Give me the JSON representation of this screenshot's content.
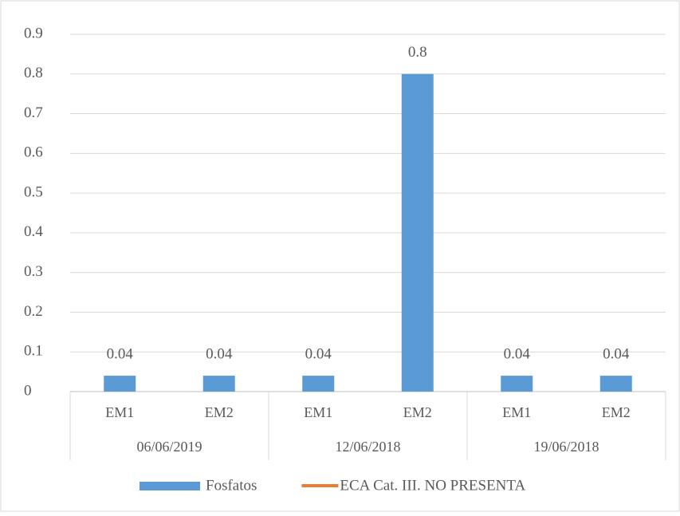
{
  "chart_data": {
    "type": "bar",
    "categories": [
      "EM1",
      "EM2",
      "EM1",
      "EM2",
      "EM1",
      "EM2"
    ],
    "groups": [
      "06/06/2019",
      "12/06/2018",
      "19/06/2018"
    ],
    "series": [
      {
        "name": "Fosfatos",
        "color": "#5b9bd5",
        "values": [
          0.04,
          0.04,
          0.04,
          0.8,
          0.04,
          0.04
        ]
      },
      {
        "name": "ECA Cat. III. NO PRESENTA",
        "color": "#ed7d31",
        "type": "line",
        "values": [
          null,
          null,
          null,
          null,
          null,
          null
        ]
      }
    ],
    "ylim": [
      0,
      0.9
    ],
    "yticks": [
      0,
      0.1,
      0.2,
      0.3,
      0.4,
      0.5,
      0.6,
      0.7,
      0.8,
      0.9
    ],
    "grid": true,
    "legend": "bottom"
  }
}
